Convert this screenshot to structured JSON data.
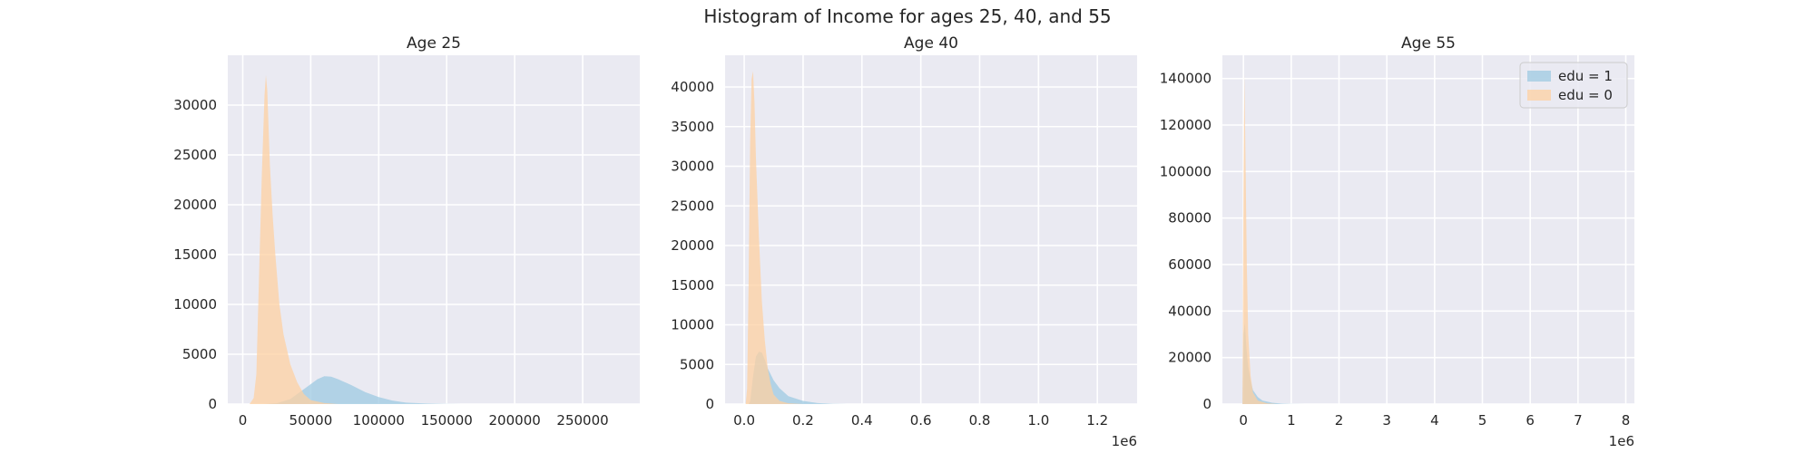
{
  "figure": {
    "suptitle": "Histogram of Income for ages 25, 40, and 55",
    "background": "#ffffff",
    "axes_facecolor": "#eaeaf2",
    "grid_color": "#ffffff",
    "series_colors": {
      "edu = 1": "#9ecae1",
      "edu = 0": "#fdd0a2"
    }
  },
  "chart_data": [
    {
      "type": "histogram",
      "title": "Age 25",
      "xlabel": "",
      "ylabel": "",
      "x_offset_label": "",
      "xlim": [
        -11000,
        292000
      ],
      "ylim": [
        0,
        35000
      ],
      "xticks": [
        0,
        50000,
        100000,
        150000,
        200000,
        250000
      ],
      "xtick_labels": [
        "0",
        "50000",
        "100000",
        "150000",
        "200000",
        "250000"
      ],
      "yticks": [
        0,
        5000,
        10000,
        15000,
        20000,
        25000,
        30000
      ],
      "ytick_labels": [
        "0",
        "5000",
        "10000",
        "15000",
        "20000",
        "25000",
        "30000"
      ],
      "grid": true,
      "legend": null,
      "series": [
        {
          "name": "edu = 1",
          "color": "#9ecae1",
          "alpha": 0.75,
          "points": [
            [
              15000,
              0
            ],
            [
              25000,
              80
            ],
            [
              35000,
              500
            ],
            [
              45000,
              1500
            ],
            [
              55000,
              2500
            ],
            [
              60000,
              2800
            ],
            [
              65000,
              2750
            ],
            [
              70000,
              2500
            ],
            [
              80000,
              1900
            ],
            [
              90000,
              1200
            ],
            [
              100000,
              700
            ],
            [
              110000,
              350
            ],
            [
              120000,
              150
            ],
            [
              135000,
              50
            ],
            [
              150000,
              10
            ],
            [
              175000,
              0
            ]
          ]
        },
        {
          "name": "edu = 0",
          "color": "#fdd0a2",
          "alpha": 0.75,
          "points": [
            [
              5000,
              0
            ],
            [
              8000,
              600
            ],
            [
              10000,
              3000
            ],
            [
              12000,
              13000
            ],
            [
              14000,
              23000
            ],
            [
              16000,
              31000
            ],
            [
              17000,
              33000
            ],
            [
              18000,
              31500
            ],
            [
              20000,
              24000
            ],
            [
              22000,
              19000
            ],
            [
              24000,
              15000
            ],
            [
              27000,
              10000
            ],
            [
              30000,
              7000
            ],
            [
              35000,
              4000
            ],
            [
              40000,
              2200
            ],
            [
              45000,
              1000
            ],
            [
              50000,
              400
            ],
            [
              60000,
              100
            ],
            [
              70000,
              0
            ]
          ]
        }
      ]
    },
    {
      "type": "histogram",
      "title": "Age 40",
      "xlabel": "",
      "ylabel": "",
      "x_offset_label": "1e6",
      "xlim": [
        -0.065,
        1.335
      ],
      "ylim": [
        0,
        44000
      ],
      "xticks": [
        0,
        0.2,
        0.4,
        0.6,
        0.8,
        1.0,
        1.2
      ],
      "xtick_labels": [
        "0.0",
        "0.2",
        "0.4",
        "0.6",
        "0.8",
        "1.0",
        "1.2"
      ],
      "yticks": [
        0,
        5000,
        10000,
        15000,
        20000,
        25000,
        30000,
        35000,
        40000
      ],
      "ytick_labels": [
        "0",
        "5000",
        "10000",
        "15000",
        "20000",
        "25000",
        "30000",
        "35000",
        "40000"
      ],
      "grid": true,
      "legend": null,
      "series": [
        {
          "name": "edu = 1",
          "color": "#9ecae1",
          "alpha": 0.75,
          "points": [
            [
              0.015,
              0
            ],
            [
              0.02,
              300
            ],
            [
              0.03,
              3500
            ],
            [
              0.04,
              6000
            ],
            [
              0.05,
              6600
            ],
            [
              0.06,
              6500
            ],
            [
              0.07,
              5600
            ],
            [
              0.08,
              4500
            ],
            [
              0.1,
              3000
            ],
            [
              0.12,
              2000
            ],
            [
              0.15,
              1000
            ],
            [
              0.2,
              400
            ],
            [
              0.25,
              120
            ],
            [
              0.3,
              30
            ],
            [
              0.35,
              0
            ]
          ]
        },
        {
          "name": "edu = 0",
          "color": "#fdd0a2",
          "alpha": 0.75,
          "points": [
            [
              0.005,
              0
            ],
            [
              0.01,
              2000
            ],
            [
              0.015,
              15000
            ],
            [
              0.02,
              33000
            ],
            [
              0.025,
              41000
            ],
            [
              0.03,
              42000
            ],
            [
              0.035,
              38000
            ],
            [
              0.04,
              31000
            ],
            [
              0.05,
              21000
            ],
            [
              0.06,
              13000
            ],
            [
              0.07,
              8000
            ],
            [
              0.08,
              4500
            ],
            [
              0.09,
              2500
            ],
            [
              0.1,
              1200
            ],
            [
              0.12,
              400
            ],
            [
              0.15,
              100
            ],
            [
              0.2,
              0
            ]
          ]
        }
      ]
    },
    {
      "type": "histogram",
      "title": "Age 55",
      "xlabel": "",
      "ylabel": "",
      "x_offset_label": "1e6",
      "xlim": [
        -0.44,
        8.18
      ],
      "ylim": [
        0,
        150000
      ],
      "xticks": [
        0,
        1,
        2,
        3,
        4,
        5,
        6,
        7,
        8
      ],
      "xtick_labels": [
        "0",
        "1",
        "2",
        "3",
        "4",
        "5",
        "6",
        "7",
        "8"
      ],
      "yticks": [
        0,
        20000,
        40000,
        60000,
        80000,
        100000,
        120000,
        140000
      ],
      "ytick_labels": [
        "0",
        "20000",
        "40000",
        "60000",
        "80000",
        "100000",
        "120000",
        "140000"
      ],
      "grid": true,
      "legend": {
        "position": "upper right",
        "entries": [
          "edu = 1",
          "edu = 0"
        ]
      },
      "series": [
        {
          "name": "edu = 1",
          "color": "#9ecae1",
          "alpha": 0.75,
          "points": [
            [
              -0.02,
              0
            ],
            [
              0.0,
              30000
            ],
            [
              0.03,
              35000
            ],
            [
              0.06,
              25000
            ],
            [
              0.1,
              16000
            ],
            [
              0.15,
              10000
            ],
            [
              0.2,
              6000
            ],
            [
              0.3,
              3000
            ],
            [
              0.4,
              1500
            ],
            [
              0.6,
              600
            ],
            [
              0.8,
              200
            ],
            [
              1.0,
              50
            ],
            [
              1.3,
              0
            ]
          ]
        },
        {
          "name": "edu = 0",
          "color": "#fdd0a2",
          "alpha": 0.75,
          "points": [
            [
              -0.02,
              0
            ],
            [
              0.0,
              90000
            ],
            [
              0.02,
              142000
            ],
            [
              0.04,
              110000
            ],
            [
              0.07,
              60000
            ],
            [
              0.1,
              30000
            ],
            [
              0.15,
              12000
            ],
            [
              0.2,
              5000
            ],
            [
              0.3,
              1500
            ],
            [
              0.5,
              300
            ],
            [
              0.7,
              0
            ]
          ]
        }
      ]
    }
  ]
}
